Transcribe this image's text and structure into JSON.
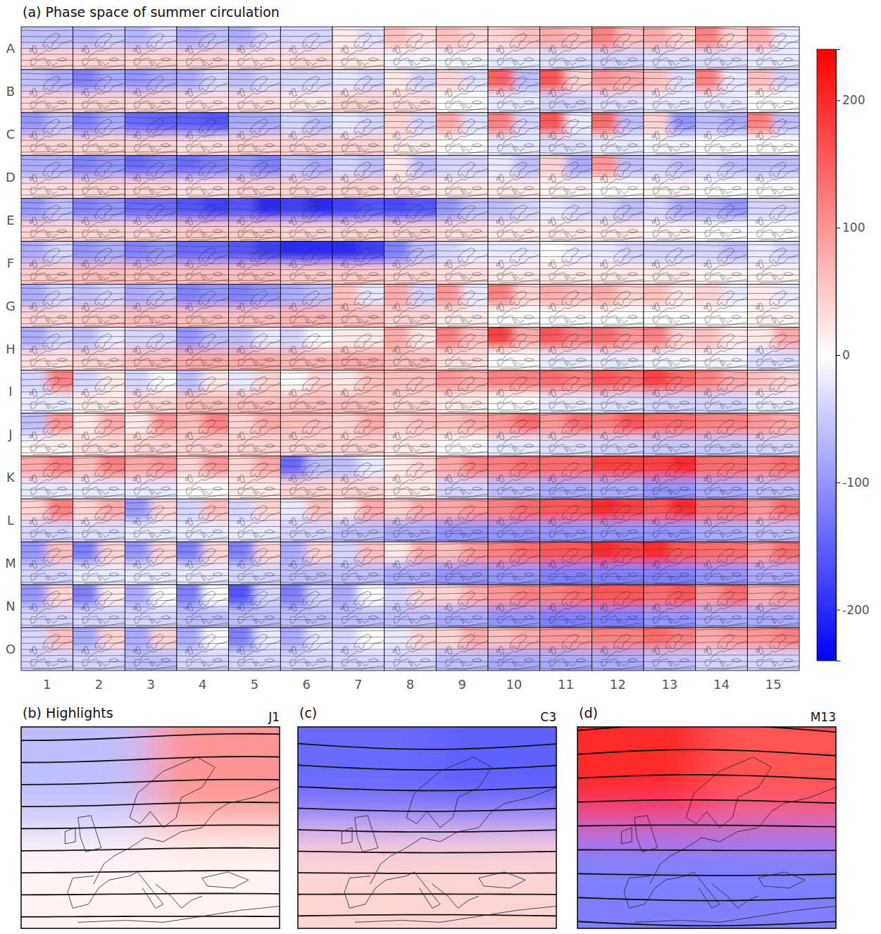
{
  "chart_data": {
    "type": "som_grid",
    "title": "(a) Phase space of summer circulation",
    "rows": [
      "A",
      "B",
      "C",
      "D",
      "E",
      "F",
      "G",
      "H",
      "I",
      "J",
      "K",
      "L",
      "M",
      "N",
      "O"
    ],
    "cols": [
      1,
      2,
      3,
      4,
      5,
      6,
      7,
      8,
      9,
      10,
      11,
      12,
      13,
      14,
      15
    ],
    "cells": [
      [
        [
          -60,
          -60,
          40
        ],
        [
          -70,
          -50,
          40
        ],
        [
          -70,
          -40,
          40
        ],
        [
          -80,
          -60,
          40
        ],
        [
          -80,
          -40,
          30
        ],
        [
          -40,
          -40,
          30
        ],
        [
          20,
          -30,
          20
        ],
        [
          60,
          30,
          -10
        ],
        [
          60,
          40,
          -10
        ],
        [
          40,
          60,
          -20
        ],
        [
          80,
          60,
          -30
        ],
        [
          120,
          60,
          -40
        ],
        [
          80,
          40,
          -30
        ],
        [
          120,
          40,
          -30
        ],
        [
          80,
          -20,
          -20
        ]
      ],
      [
        [
          -60,
          -80,
          40
        ],
        [
          -120,
          -80,
          40
        ],
        [
          -100,
          -80,
          40
        ],
        [
          -80,
          -40,
          30
        ],
        [
          -60,
          -40,
          30
        ],
        [
          -40,
          -40,
          20
        ],
        [
          -20,
          -40,
          40
        ],
        [
          20,
          -40,
          30
        ],
        [
          40,
          -30,
          0
        ],
        [
          150,
          -60,
          -20
        ],
        [
          160,
          40,
          -40
        ],
        [
          100,
          80,
          -30
        ],
        [
          60,
          -30,
          -20
        ],
        [
          120,
          -20,
          -20
        ],
        [
          60,
          -40,
          0
        ]
      ],
      [
        [
          -100,
          -60,
          40
        ],
        [
          -120,
          -80,
          40
        ],
        [
          -140,
          -150,
          40
        ],
        [
          -150,
          -160,
          30
        ],
        [
          -80,
          -80,
          40
        ],
        [
          -40,
          -60,
          40
        ],
        [
          -20,
          -40,
          40
        ],
        [
          40,
          -40,
          20
        ],
        [
          80,
          -30,
          0
        ],
        [
          120,
          -40,
          -20
        ],
        [
          160,
          -20,
          -30
        ],
        [
          140,
          -60,
          -20
        ],
        [
          40,
          -100,
          -10
        ],
        [
          -60,
          -80,
          0
        ],
        [
          120,
          -60,
          0
        ]
      ],
      [
        [
          -80,
          -80,
          30
        ],
        [
          -120,
          -100,
          40
        ],
        [
          -140,
          -120,
          40
        ],
        [
          -140,
          -120,
          30
        ],
        [
          -100,
          -120,
          40
        ],
        [
          -60,
          -80,
          40
        ],
        [
          -40,
          -60,
          40
        ],
        [
          20,
          -60,
          30
        ],
        [
          -40,
          -40,
          20
        ],
        [
          -20,
          -60,
          20
        ],
        [
          40,
          -80,
          10
        ],
        [
          100,
          -60,
          0
        ],
        [
          -40,
          -60,
          10
        ],
        [
          -40,
          -60,
          0
        ],
        [
          -60,
          -60,
          0
        ]
      ],
      [
        [
          -100,
          -60,
          40
        ],
        [
          -120,
          -100,
          40
        ],
        [
          -140,
          -140,
          40
        ],
        [
          -160,
          -180,
          50
        ],
        [
          -160,
          -200,
          50
        ],
        [
          -180,
          -200,
          40
        ],
        [
          -180,
          -160,
          40
        ],
        [
          -170,
          -160,
          40
        ],
        [
          -100,
          -60,
          30
        ],
        [
          -60,
          -40,
          20
        ],
        [
          -20,
          -40,
          20
        ],
        [
          -40,
          -60,
          20
        ],
        [
          -40,
          -80,
          10
        ],
        [
          -80,
          -100,
          0
        ],
        [
          -40,
          -40,
          0
        ]
      ],
      [
        [
          -80,
          -40,
          50
        ],
        [
          -100,
          -80,
          60
        ],
        [
          -120,
          -100,
          60
        ],
        [
          -140,
          -140,
          60
        ],
        [
          -160,
          -180,
          60
        ],
        [
          -200,
          -200,
          50
        ],
        [
          -200,
          -180,
          50
        ],
        [
          -120,
          -60,
          40
        ],
        [
          -40,
          -20,
          30
        ],
        [
          -20,
          -20,
          20
        ],
        [
          0,
          -20,
          20
        ],
        [
          -20,
          -40,
          20
        ],
        [
          -40,
          -40,
          20
        ],
        [
          -40,
          -60,
          10
        ],
        [
          -20,
          -40,
          10
        ]
      ],
      [
        [
          -80,
          -40,
          40
        ],
        [
          -60,
          -40,
          50
        ],
        [
          -80,
          -60,
          60
        ],
        [
          -120,
          -100,
          60
        ],
        [
          -120,
          -100,
          60
        ],
        [
          -80,
          -60,
          70
        ],
        [
          60,
          -20,
          60
        ],
        [
          80,
          -40,
          40
        ],
        [
          100,
          -20,
          20
        ],
        [
          120,
          40,
          0
        ],
        [
          80,
          60,
          0
        ],
        [
          80,
          40,
          0
        ],
        [
          60,
          20,
          0
        ],
        [
          40,
          -20,
          0
        ],
        [
          20,
          -20,
          10
        ]
      ],
      [
        [
          -80,
          -40,
          30
        ],
        [
          -60,
          -20,
          40
        ],
        [
          -40,
          -40,
          60
        ],
        [
          -100,
          -60,
          80
        ],
        [
          -60,
          -20,
          80
        ],
        [
          -40,
          0,
          70
        ],
        [
          20,
          20,
          80
        ],
        [
          80,
          20,
          60
        ],
        [
          120,
          60,
          30
        ],
        [
          180,
          80,
          0
        ],
        [
          160,
          120,
          -20
        ],
        [
          140,
          100,
          -20
        ],
        [
          120,
          40,
          -10
        ],
        [
          60,
          20,
          -10
        ],
        [
          20,
          80,
          -30
        ]
      ],
      [
        [
          -40,
          120,
          -20
        ],
        [
          -40,
          20,
          20
        ],
        [
          -40,
          0,
          40
        ],
        [
          -60,
          20,
          60
        ],
        [
          -20,
          40,
          60
        ],
        [
          0,
          40,
          60
        ],
        [
          20,
          60,
          60
        ],
        [
          60,
          60,
          40
        ],
        [
          100,
          80,
          20
        ],
        [
          120,
          120,
          0
        ],
        [
          140,
          120,
          -20
        ],
        [
          160,
          140,
          -30
        ],
        [
          180,
          140,
          -40
        ],
        [
          120,
          80,
          -40
        ],
        [
          60,
          40,
          -20
        ]
      ],
      [
        [
          -60,
          100,
          10
        ],
        [
          20,
          80,
          30
        ],
        [
          20,
          100,
          40
        ],
        [
          60,
          120,
          40
        ],
        [
          40,
          80,
          40
        ],
        [
          60,
          60,
          40
        ],
        [
          40,
          80,
          40
        ],
        [
          40,
          60,
          20
        ],
        [
          60,
          80,
          0
        ],
        [
          100,
          140,
          -20
        ],
        [
          100,
          140,
          -30
        ],
        [
          120,
          160,
          -40
        ],
        [
          140,
          140,
          -50
        ],
        [
          120,
          120,
          -50
        ],
        [
          100,
          80,
          -40
        ]
      ],
      [
        [
          80,
          120,
          -20
        ],
        [
          60,
          120,
          -20
        ],
        [
          80,
          100,
          -20
        ],
        [
          40,
          100,
          0
        ],
        [
          40,
          80,
          20
        ],
        [
          -140,
          -60,
          40
        ],
        [
          -60,
          -20,
          40
        ],
        [
          20,
          40,
          20
        ],
        [
          80,
          120,
          -40
        ],
        [
          120,
          140,
          -60
        ],
        [
          140,
          140,
          -80
        ],
        [
          180,
          180,
          -80
        ],
        [
          180,
          200,
          -100
        ],
        [
          140,
          140,
          -80
        ],
        [
          120,
          140,
          -60
        ]
      ],
      [
        [
          40,
          120,
          -40
        ],
        [
          40,
          80,
          -30
        ],
        [
          -100,
          40,
          -20
        ],
        [
          -40,
          60,
          -20
        ],
        [
          -40,
          40,
          -20
        ],
        [
          -20,
          60,
          -40
        ],
        [
          20,
          80,
          -60
        ],
        [
          40,
          80,
          -80
        ],
        [
          80,
          100,
          -100
        ],
        [
          120,
          140,
          -100
        ],
        [
          160,
          160,
          -100
        ],
        [
          200,
          180,
          -100
        ],
        [
          160,
          200,
          -100
        ],
        [
          140,
          140,
          -80
        ],
        [
          100,
          140,
          -60
        ]
      ],
      [
        [
          -100,
          60,
          -40
        ],
        [
          -120,
          40,
          -20
        ],
        [
          -100,
          40,
          -20
        ],
        [
          -120,
          40,
          -20
        ],
        [
          -120,
          40,
          -40
        ],
        [
          -80,
          40,
          -60
        ],
        [
          -40,
          60,
          -60
        ],
        [
          20,
          80,
          -80
        ],
        [
          60,
          100,
          -100
        ],
        [
          120,
          140,
          -100
        ],
        [
          160,
          160,
          -120
        ],
        [
          200,
          180,
          -120
        ],
        [
          200,
          160,
          -120
        ],
        [
          140,
          140,
          -100
        ],
        [
          100,
          140,
          -80
        ]
      ],
      [
        [
          -100,
          40,
          -40
        ],
        [
          -120,
          20,
          -40
        ],
        [
          -80,
          0,
          -40
        ],
        [
          -120,
          0,
          -60
        ],
        [
          -160,
          -40,
          -60
        ],
        [
          -120,
          -40,
          -60
        ],
        [
          -80,
          0,
          -60
        ],
        [
          -40,
          40,
          -60
        ],
        [
          40,
          80,
          -80
        ],
        [
          100,
          120,
          -100
        ],
        [
          120,
          140,
          -120
        ],
        [
          160,
          160,
          -120
        ],
        [
          140,
          160,
          -100
        ],
        [
          100,
          140,
          -80
        ],
        [
          80,
          100,
          -80
        ]
      ],
      [
        [
          -40,
          60,
          -40
        ],
        [
          -80,
          40,
          -40
        ],
        [
          -80,
          40,
          -60
        ],
        [
          -80,
          0,
          -40
        ],
        [
          -120,
          -20,
          -40
        ],
        [
          -80,
          -20,
          -40
        ],
        [
          -40,
          0,
          -40
        ],
        [
          -20,
          40,
          -40
        ],
        [
          40,
          80,
          -60
        ],
        [
          60,
          80,
          -80
        ],
        [
          100,
          100,
          -80
        ],
        [
          120,
          120,
          -80
        ],
        [
          140,
          120,
          -60
        ],
        [
          80,
          100,
          -40
        ],
        [
          100,
          120,
          -40
        ]
      ]
    ],
    "colorbar": {
      "lim": [
        -240,
        240
      ],
      "ticks": [
        -200,
        -100,
        0,
        100,
        200
      ]
    },
    "highlights": [
      {
        "title": "(b) Highlights",
        "cell": "J1"
      },
      {
        "title": "(c)",
        "cell": "C3"
      },
      {
        "title": "(d)",
        "cell": "M13"
      }
    ]
  }
}
